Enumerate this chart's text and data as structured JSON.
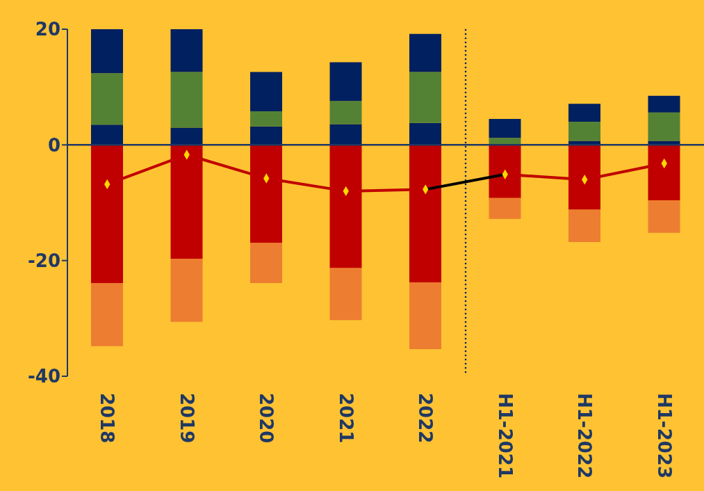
{
  "chart_data": {
    "type": "bar",
    "stacked": true,
    "categories": [
      "2018",
      "2019",
      "2020",
      "2021",
      "2022",
      "H1-2021",
      "H1-2022",
      "H1-2023"
    ],
    "series": [
      {
        "color": "#002060",
        "values": [
          3.5,
          3.0,
          3.2,
          3.6,
          3.8,
          null,
          0.7,
          0.7
        ]
      },
      {
        "color": "#548235",
        "values": [
          8.9,
          9.6,
          2.6,
          4.0,
          8.8,
          1.2,
          3.3,
          4.9
        ]
      },
      {
        "color": "#002060",
        "values": [
          7.6,
          7.4,
          6.8,
          6.7,
          6.6,
          3.3,
          3.1,
          2.9
        ]
      },
      {
        "color": "#c00000",
        "values": [
          -23.9,
          -19.7,
          -16.9,
          -21.3,
          -23.8,
          -9.2,
          -11.2,
          -9.6
        ]
      },
      {
        "color": "#ed7d31",
        "values": [
          -10.9,
          -10.9,
          -7.0,
          -9.0,
          -11.5,
          -3.6,
          -5.6,
          -5.6
        ]
      },
      {
        "type": "line",
        "color": "#c00000",
        "values": [
          -6.8,
          -1.7,
          -5.8,
          -8.0,
          -7.7,
          null,
          null,
          null
        ]
      },
      {
        "type": "line",
        "color": "#000000",
        "values": [
          null,
          null,
          null,
          null,
          -7.7,
          -5.1,
          null,
          null
        ]
      },
      {
        "type": "line",
        "color": "#c00000",
        "values": [
          null,
          null,
          null,
          null,
          null,
          -5.1,
          -6.0,
          -3.2
        ]
      },
      {
        "type": "scatter",
        "marker": "diamond",
        "color": "#ffd700",
        "values": [
          -6.8,
          -1.7,
          -5.8,
          -8.0,
          -7.7,
          -5.1,
          -6.0,
          -3.2
        ]
      }
    ],
    "ylim": [
      -40,
      20
    ],
    "yticks": [
      -40,
      -20,
      0,
      20
    ],
    "grid": false,
    "legend": false,
    "marker": "none",
    "ref_lines": [
      {
        "axis": "y",
        "value": 0,
        "line_style": "solid",
        "color": "#1f3864"
      }
    ]
  }
}
